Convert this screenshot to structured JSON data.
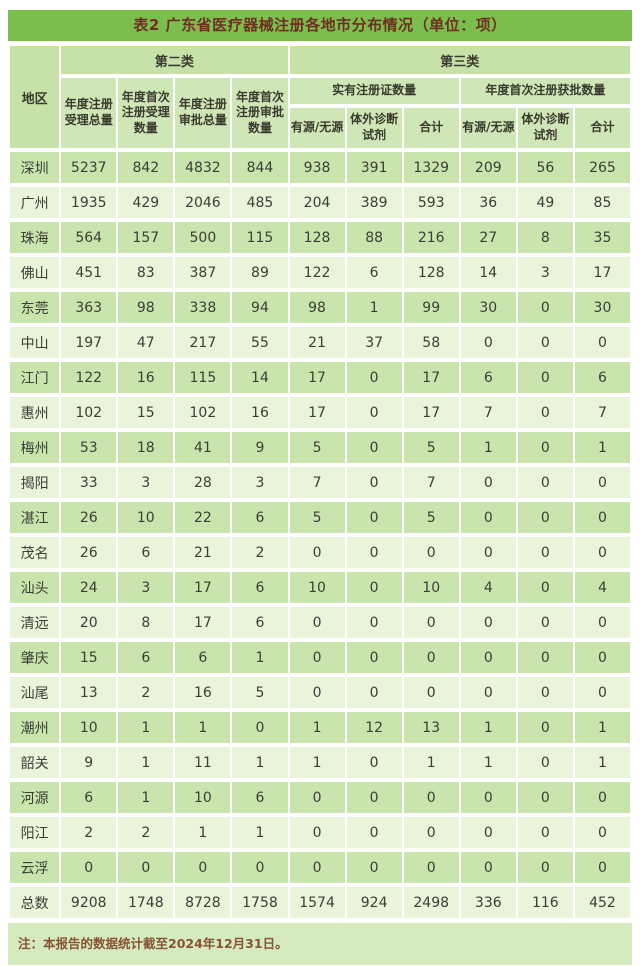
{
  "title": "表2 广东省医疗器械注册各地市分布情况（单位：项）",
  "footnote": "注：本报告的数据统计截至2024年12月31日。",
  "colors": {
    "title_bar": "#7cbe4d",
    "title_text": "#6e2f23",
    "header_bg": "#c7e2a9",
    "subheader_bg": "#cfe7b7",
    "row_dark": "#c9e4ac",
    "row_light": "#e9f4db",
    "footnote_bg": "#d5eabf",
    "footnote_text": "#875433",
    "data_text": "#3a3f36"
  },
  "table": {
    "region_header": "地区",
    "class2_header": "第二类",
    "class3_header": "第三类",
    "class2_columns": [
      "年度注册受理总量",
      "年度首次注册受理数量",
      "年度注册审批总量",
      "年度首次注册审批数量"
    ],
    "class3_groups": [
      {
        "label": "实有注册证数量",
        "columns": [
          "有源/无源",
          "体外诊断试剂",
          "合计"
        ]
      },
      {
        "label": "年度首次注册获批数量",
        "columns": [
          "有源/无源",
          "体外诊断试剂",
          "合计"
        ]
      }
    ],
    "rows": [
      {
        "region": "深圳",
        "values": [
          5237,
          842,
          4832,
          844,
          938,
          391,
          1329,
          209,
          56,
          265
        ]
      },
      {
        "region": "广州",
        "values": [
          1935,
          429,
          2046,
          485,
          204,
          389,
          593,
          36,
          49,
          85
        ]
      },
      {
        "region": "珠海",
        "values": [
          564,
          157,
          500,
          115,
          128,
          88,
          216,
          27,
          8,
          35
        ]
      },
      {
        "region": "佛山",
        "values": [
          451,
          83,
          387,
          89,
          122,
          6,
          128,
          14,
          3,
          17
        ]
      },
      {
        "region": "东莞",
        "values": [
          363,
          98,
          338,
          94,
          98,
          1,
          99,
          30,
          0,
          30
        ]
      },
      {
        "region": "中山",
        "values": [
          197,
          47,
          217,
          55,
          21,
          37,
          58,
          0,
          0,
          0
        ]
      },
      {
        "region": "江门",
        "values": [
          122,
          16,
          115,
          14,
          17,
          0,
          17,
          6,
          0,
          6
        ]
      },
      {
        "region": "惠州",
        "values": [
          102,
          15,
          102,
          16,
          17,
          0,
          17,
          7,
          0,
          7
        ]
      },
      {
        "region": "梅州",
        "values": [
          53,
          18,
          41,
          9,
          5,
          0,
          5,
          1,
          0,
          1
        ]
      },
      {
        "region": "揭阳",
        "values": [
          33,
          3,
          28,
          3,
          7,
          0,
          7,
          0,
          0,
          0
        ]
      },
      {
        "region": "湛江",
        "values": [
          26,
          10,
          22,
          6,
          5,
          0,
          5,
          0,
          0,
          0
        ]
      },
      {
        "region": "茂名",
        "values": [
          26,
          6,
          21,
          2,
          0,
          0,
          0,
          0,
          0,
          0
        ]
      },
      {
        "region": "汕头",
        "values": [
          24,
          3,
          17,
          6,
          10,
          0,
          10,
          4,
          0,
          4
        ]
      },
      {
        "region": "清远",
        "values": [
          20,
          8,
          17,
          6,
          0,
          0,
          0,
          0,
          0,
          0
        ]
      },
      {
        "region": "肇庆",
        "values": [
          15,
          6,
          6,
          1,
          0,
          0,
          0,
          0,
          0,
          0
        ]
      },
      {
        "region": "汕尾",
        "values": [
          13,
          2,
          16,
          5,
          0,
          0,
          0,
          0,
          0,
          0
        ]
      },
      {
        "region": "潮州",
        "values": [
          10,
          1,
          1,
          0,
          1,
          12,
          13,
          1,
          0,
          1
        ]
      },
      {
        "region": "韶关",
        "values": [
          9,
          1,
          11,
          1,
          1,
          0,
          1,
          1,
          0,
          1
        ]
      },
      {
        "region": "河源",
        "values": [
          6,
          1,
          10,
          6,
          0,
          0,
          0,
          0,
          0,
          0
        ]
      },
      {
        "region": "阳江",
        "values": [
          2,
          2,
          1,
          1,
          0,
          0,
          0,
          0,
          0,
          0
        ]
      },
      {
        "region": "云浮",
        "values": [
          0,
          0,
          0,
          0,
          0,
          0,
          0,
          0,
          0,
          0
        ]
      },
      {
        "region": "总数",
        "values": [
          9208,
          1748,
          8728,
          1758,
          1574,
          924,
          2498,
          336,
          116,
          452
        ]
      }
    ]
  }
}
